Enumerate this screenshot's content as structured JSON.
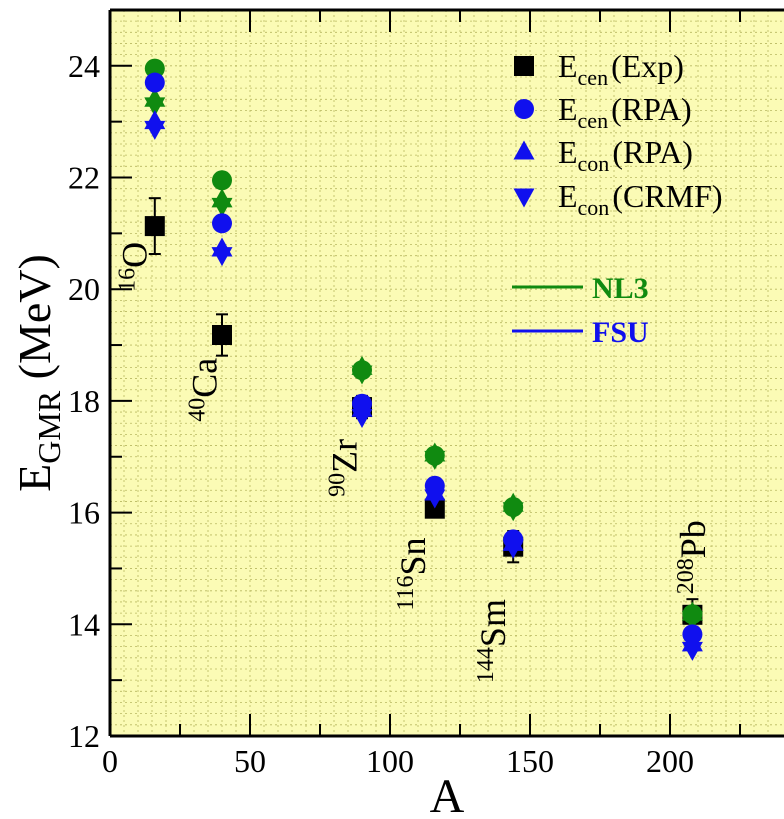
{
  "chart_data": {
    "type": "scatter",
    "xlabel": "A",
    "ylabel": "E",
    "ylabel_sub": "GMR",
    "ylabel_unit": " (MeV)",
    "xlim": [
      0,
      240
    ],
    "ylim": [
      12,
      25
    ],
    "x_ticks": [
      0,
      50,
      100,
      150,
      200
    ],
    "y_ticks": [
      12,
      14,
      16,
      18,
      20,
      22,
      24
    ],
    "grid": true,
    "colors": {
      "background": "#fbfbb5",
      "grid": "#b8b860",
      "exp": "#000000",
      "nl3": "#108a10",
      "fsu": "#1010ee"
    },
    "legend": {
      "placement": "top-right",
      "entries": [
        {
          "marker": "square",
          "main": "E",
          "sub": "cen",
          "rest": "(Exp)"
        },
        {
          "marker": "circle",
          "main": "E",
          "sub": "cen",
          "rest": "(RPA)"
        },
        {
          "marker": "triangle-up",
          "main": "E",
          "sub": "con",
          "rest": "(RPA)"
        },
        {
          "marker": "triangle-down",
          "main": "E",
          "sub": "con",
          "rest": "(CRMF)"
        }
      ],
      "lines": [
        {
          "label": "NL3",
          "color": "#108a10"
        },
        {
          "label": "FSU",
          "color": "#1010ee"
        }
      ]
    },
    "nuclei": [
      {
        "A": 16,
        "sup": "16",
        "sym": "O",
        "label_pos": [
          13,
          20.4
        ]
      },
      {
        "A": 40,
        "sup": "40",
        "sym": "Ca",
        "label_pos": [
          38,
          18.2
        ]
      },
      {
        "A": 90,
        "sup": "90",
        "sym": "Zr",
        "label_pos": [
          88,
          16.8
        ]
      },
      {
        "A": 116,
        "sup": "116",
        "sym": "Sn",
        "label_pos": [
          112.5,
          14.9
        ]
      },
      {
        "A": 144,
        "sup": "144",
        "sym": "Sm",
        "label_pos": [
          141,
          13.7
        ]
      },
      {
        "A": 208,
        "sup": "208",
        "sym": "Pb",
        "label_pos": [
          212.5,
          15.2
        ]
      }
    ],
    "series": [
      {
        "name": "Ecen(Exp)",
        "marker": "square",
        "color": "#000000",
        "x": [
          16,
          40,
          90,
          116,
          144,
          208
        ],
        "y": [
          21.13,
          19.18,
          17.89,
          16.07,
          15.39,
          14.17
        ],
        "err": [
          0.5,
          0.37,
          0.2,
          0.12,
          0.28,
          0.28
        ]
      },
      {
        "name": "NL3 Econ(RPA)",
        "marker": "triangle-up",
        "color": "#108a10",
        "x": [
          16,
          40,
          90,
          116,
          144,
          208
        ],
        "y": [
          23.4,
          21.6,
          18.6,
          17.05,
          16.15,
          14.2
        ]
      },
      {
        "name": "NL3 Econ(CRMF)",
        "marker": "triangle-down",
        "color": "#108a10",
        "x": [
          16,
          40,
          90,
          116,
          144,
          208
        ],
        "y": [
          23.3,
          21.5,
          18.5,
          16.97,
          16.05,
          14.1
        ]
      },
      {
        "name": "NL3 Ecen(RPA)",
        "marker": "circle",
        "color": "#108a10",
        "x": [
          16,
          40,
          90,
          116,
          144,
          208
        ],
        "y": [
          23.95,
          21.95,
          18.55,
          17.02,
          16.1,
          14.18
        ]
      },
      {
        "name": "FSU Econ(RPA)",
        "marker": "triangle-up",
        "color": "#1010ee",
        "x": [
          16,
          40,
          90,
          116,
          144,
          208
        ],
        "y": [
          23.0,
          20.72,
          17.85,
          16.35,
          15.45,
          13.65
        ]
      },
      {
        "name": "FSU Econ(CRMF)",
        "marker": "triangle-down",
        "color": "#1010ee",
        "x": [
          16,
          40,
          90,
          116,
          144,
          208
        ],
        "y": [
          22.88,
          20.62,
          17.72,
          16.28,
          15.38,
          13.55
        ]
      },
      {
        "name": "FSU Ecen(RPA)",
        "marker": "circle",
        "color": "#1010ee",
        "x": [
          16,
          40,
          90,
          116,
          144,
          208
        ],
        "y": [
          23.7,
          21.18,
          17.95,
          16.48,
          15.52,
          13.82
        ]
      }
    ]
  }
}
